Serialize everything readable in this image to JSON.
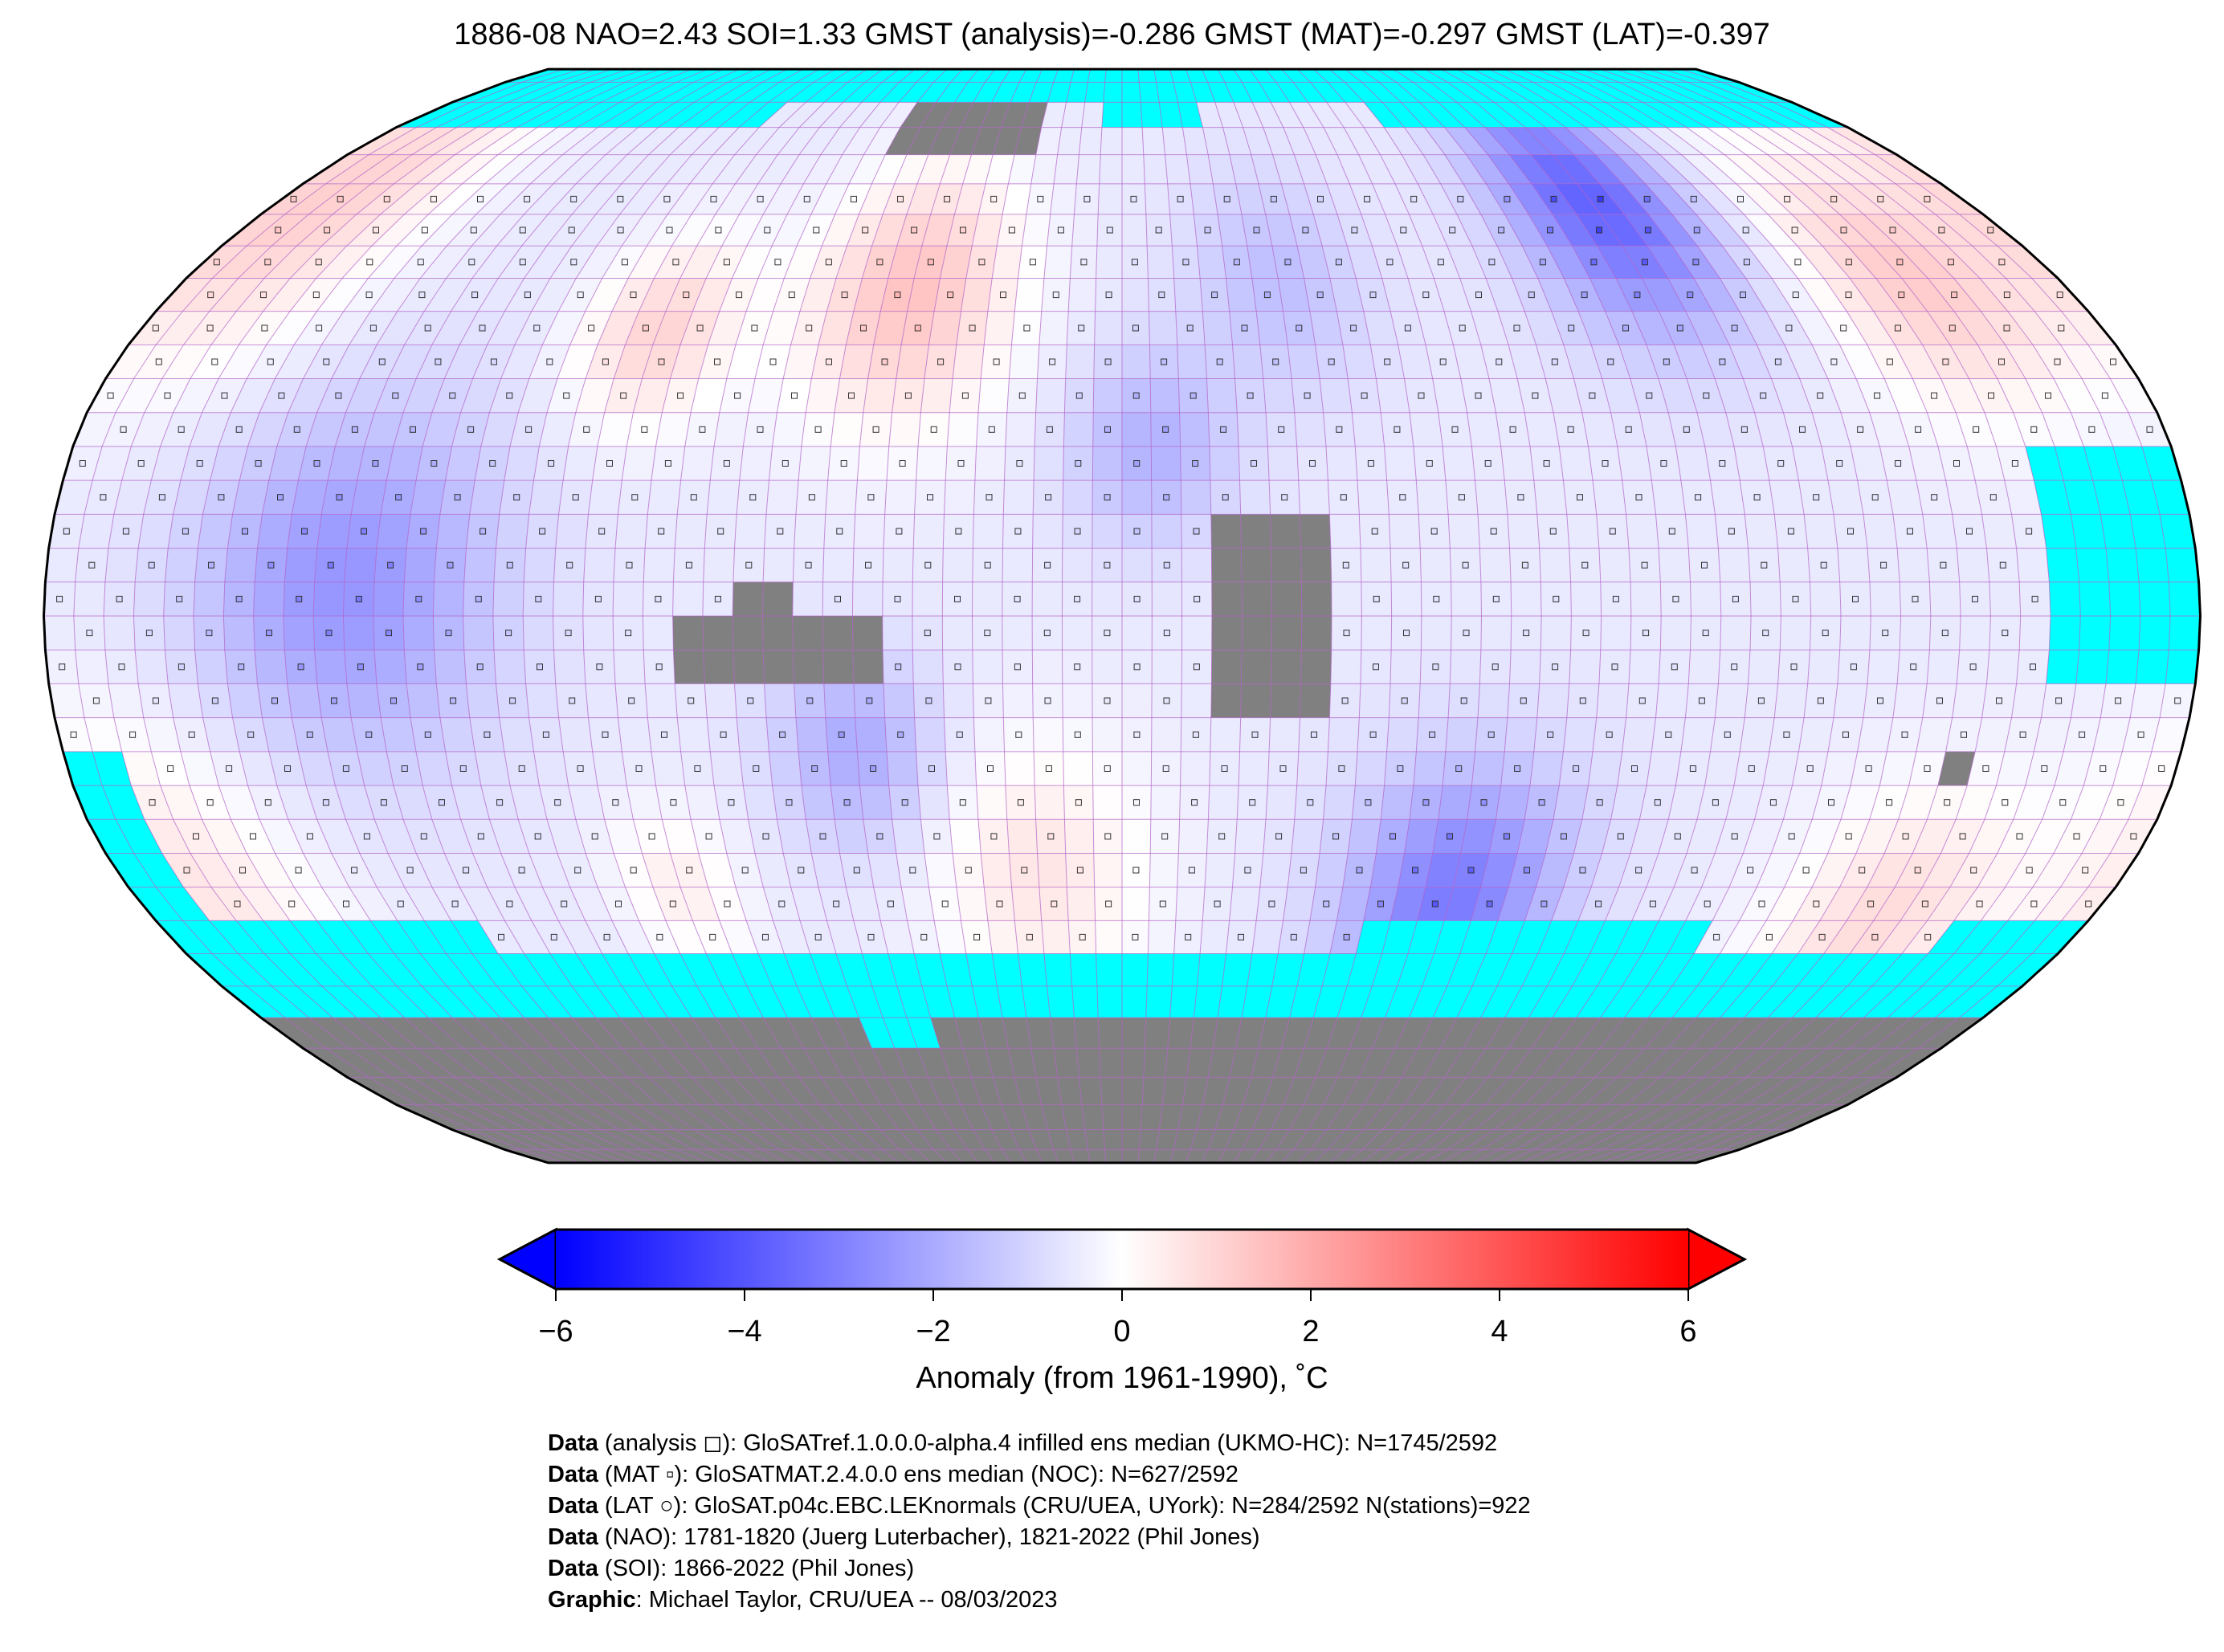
{
  "title": "1886-08 NAO=2.43 SOI=1.33 GMST (analysis)=-0.286 GMST (MAT)=-0.297 GMST (LAT)=-0.397",
  "chart_data": {
    "type": "heatmap",
    "projection": "Robinson",
    "grid_resolution_deg": 5,
    "colormap": "bwr",
    "missing_color": "#00ffff",
    "masked_color": "#808080",
    "gridline_color": "#b060c8",
    "colorbar": {
      "vmin": -6,
      "vmax": 6,
      "extend": "both",
      "ticks": [
        "−6",
        "−4",
        "−2",
        "0",
        "2",
        "4",
        "6"
      ],
      "tick_values": [
        -6,
        -4,
        -2,
        0,
        2,
        4,
        6
      ],
      "label": "Anomaly (from 1961-1990), ˚C"
    }
  },
  "footer": [
    {
      "bold": "Data",
      "text": " (analysis ◻): GloSATref.1.0.0.0-alpha.4 infilled ens median (UKMO-HC): N=1745/2592"
    },
    {
      "bold": "Data",
      "text": " (MAT ▫): GloSATMAT.2.4.0.0 ens median (NOC): N=627/2592"
    },
    {
      "bold": "Data",
      "text": " (LAT ○): GloSAT.p04c.EBC.LEKnormals (CRU/UEA, UYork): N=284/2592 N(stations)=922"
    },
    {
      "bold": "Data",
      "text": " (NAO): 1781-1820 (Juerg Luterbacher), 1821-2022 (Phil Jones)"
    },
    {
      "bold": "Data",
      "text": " (SOI): 1866-2022 (Phil Jones)"
    },
    {
      "bold": "Graphic",
      "text": ": Michael Taylor, CRU/UEA -- 08/03/2023"
    }
  ]
}
